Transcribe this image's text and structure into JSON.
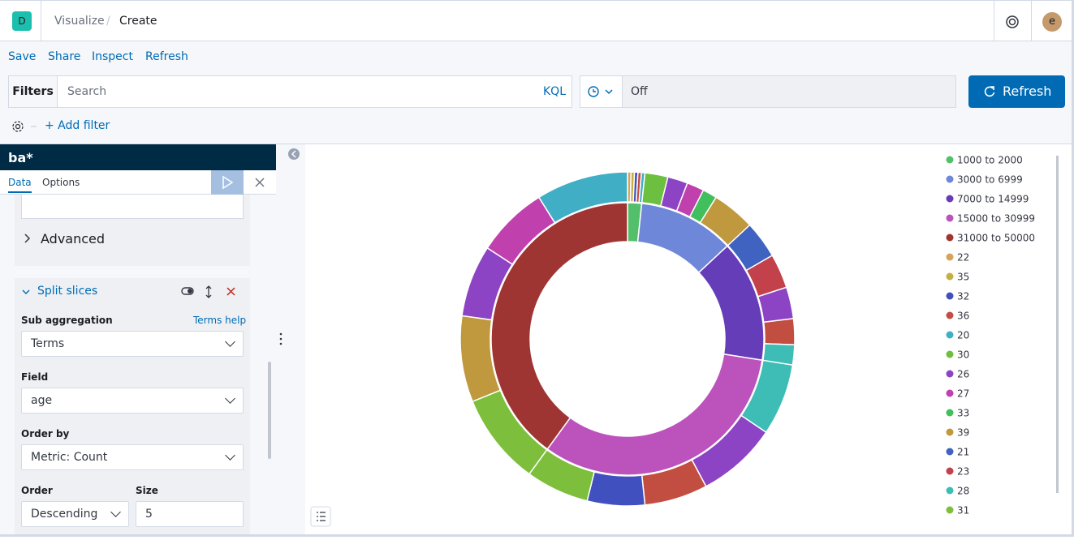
{
  "header": {
    "logo": "D",
    "breadcrumbs": [
      "Visualize",
      "Create"
    ],
    "avatar": "e"
  },
  "top_menu": [
    "Save",
    "Share",
    "Inspect",
    "Refresh"
  ],
  "query_bar": {
    "filters_label": "Filters",
    "placeholder": "Search",
    "language": "KQL",
    "interval": "Off",
    "refresh_button": "Refresh",
    "add_filter": "+ Add filter"
  },
  "sidebar": {
    "index_pattern": "ba*",
    "tabs": [
      "Data",
      "Options"
    ],
    "advanced": "Advanced",
    "split_title": "Split slices",
    "sub_aggregation_label": "Sub aggregation",
    "terms_help": "Terms help",
    "sub_aggregation_value": "Terms",
    "field_label": "Field",
    "field_value": "age",
    "order_by_label": "Order by",
    "order_by_value": "Metric: Count",
    "order_label": "Order",
    "order_value": "Descending",
    "size_label": "Size",
    "size_value": "5"
  },
  "chart_data": {
    "type": "donut",
    "categories": [
      "1000 to 2000",
      "3000 to 6999",
      "7000 to 14999",
      "15000 to 30999",
      "31000 to 50000"
    ],
    "values": [
      6,
      41,
      52,
      117,
      144
    ],
    "colors": [
      "#54bf6b",
      "#6f87d8",
      "#663db8",
      "#bc52bc",
      "#9e3533"
    ],
    "sub_slices": [
      [
        {
          "name": "22",
          "value": 1.2,
          "color": "#d6a35c"
        },
        {
          "name": "35",
          "value": 1.2,
          "color": "#c4b040"
        },
        {
          "name": "32",
          "value": 1.2,
          "color": "#4050bf"
        },
        {
          "name": "36",
          "value": 1.2,
          "color": "#c24e42"
        },
        {
          "name": "20",
          "value": 1.2,
          "color": "#40aec4"
        }
      ],
      [
        {
          "name": "30",
          "value": 8,
          "color": "#6dbf40"
        },
        {
          "name": "26",
          "value": 7,
          "color": "#8d44c4"
        },
        {
          "name": "27",
          "value": 6,
          "color": "#c040ae"
        },
        {
          "name": "33",
          "value": 5,
          "color": "#40bf5c"
        },
        {
          "name": "39",
          "value": 15,
          "color": "#c0983e"
        }
      ],
      [
        {
          "name": "21",
          "value": 13,
          "color": "#4062c0"
        },
        {
          "name": "23",
          "value": 12,
          "color": "#c2414a"
        },
        {
          "name": "26",
          "value": 11,
          "color": "#8d44c4"
        },
        {
          "name": "36",
          "value": 9,
          "color": "#c24e42"
        },
        {
          "name": "28",
          "value": 7,
          "color": "#3dbdb5"
        }
      ],
      [
        {
          "name": "28",
          "value": 25,
          "color": "#3dbdb5"
        },
        {
          "name": "26",
          "value": 28,
          "color": "#8d44c4"
        },
        {
          "name": "36",
          "value": 22,
          "color": "#c24e42"
        },
        {
          "name": "32",
          "value": 20,
          "color": "#4050bf"
        },
        {
          "name": "31",
          "value": 22,
          "color": "#7dbf3c"
        }
      ],
      [
        {
          "name": "31",
          "value": 32,
          "color": "#7dbf3c"
        },
        {
          "name": "39",
          "value": 30,
          "color": "#c0983e"
        },
        {
          "name": "26",
          "value": 25,
          "color": "#8d44c4"
        },
        {
          "name": "27",
          "value": 25,
          "color": "#c040ae"
        },
        {
          "name": "20",
          "value": 32,
          "color": "#40aec4"
        }
      ]
    ]
  }
}
